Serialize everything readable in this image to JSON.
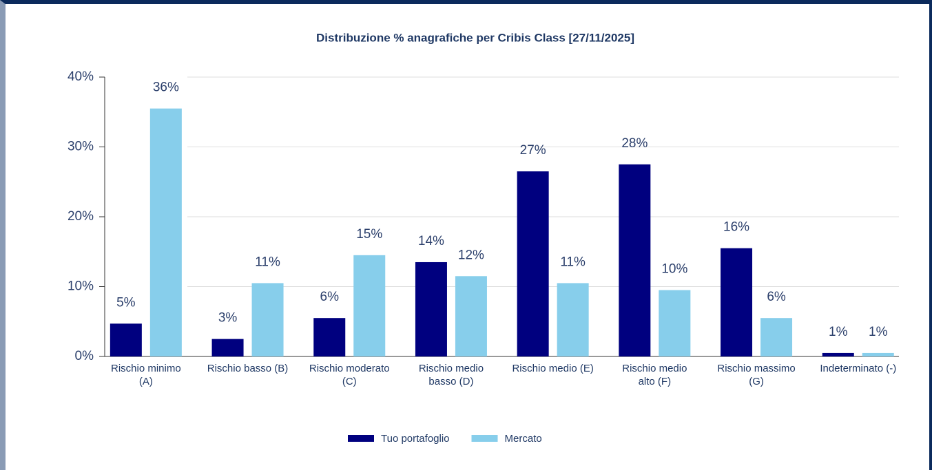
{
  "chart_data": {
    "type": "bar",
    "title": "Distribuzione % anagrafiche per Cribis Class [27/11/2025]",
    "categories": [
      "Rischio minimo (A)",
      "Rischio basso (B)",
      "Rischio moderato (C)",
      "Rischio medio basso (D)",
      "Rischio medio (E)",
      "Rischio medio alto (F)",
      "Rischio massimo (G)",
      "Indeterminato (-)"
    ],
    "series": [
      {
        "name": "Tuo portafoglio",
        "color": "#00007f",
        "values": [
          4.7,
          2.5,
          5.5,
          13.5,
          26.5,
          27.5,
          15.5,
          0.5
        ],
        "value_labels": [
          "5%",
          "3%",
          "6%",
          "14%",
          "27%",
          "28%",
          "16%",
          "1%"
        ]
      },
      {
        "name": "Mercato",
        "color": "#87ceeb",
        "values": [
          35.5,
          10.5,
          14.5,
          11.5,
          10.5,
          9.5,
          5.5,
          0.5
        ],
        "value_labels": [
          "36%",
          "11%",
          "15%",
          "12%",
          "11%",
          "10%",
          "6%",
          "1%"
        ]
      }
    ],
    "ylim": [
      0,
      40
    ],
    "yticks": [
      {
        "value": 0,
        "label": "0%"
      },
      {
        "value": 10,
        "label": "10%"
      },
      {
        "value": 20,
        "label": "20%"
      },
      {
        "value": 30,
        "label": "30%"
      },
      {
        "value": 40,
        "label": "40%"
      }
    ],
    "grid": true,
    "legend": "bottom"
  }
}
